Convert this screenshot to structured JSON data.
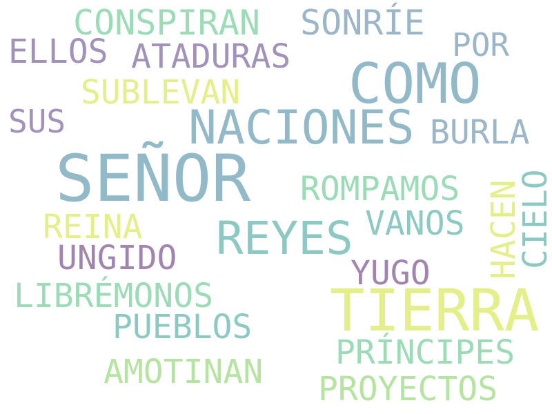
{
  "words": [
    {
      "id": "senor",
      "text": "SEÑOR",
      "color": "#91b9c7"
    },
    {
      "id": "como",
      "text": "COMO",
      "color": "#91b9c7"
    },
    {
      "id": "naciones",
      "text": "NACIONES",
      "color": "#91b9c7"
    },
    {
      "id": "tierra",
      "text": "TIERRA",
      "color": "#e4ef8a"
    },
    {
      "id": "reyes",
      "text": "REYES",
      "color": "#8cc9c3"
    },
    {
      "id": "conspiran",
      "text": "CONSPIRAN",
      "color": "#9bdcb7"
    },
    {
      "id": "sonrie",
      "text": "SONRÍE",
      "color": "#9bb5c9"
    },
    {
      "id": "ellos",
      "text": "ELLOS",
      "color": "#a291b9"
    },
    {
      "id": "ataduras",
      "text": "ATADURAS",
      "color": "#a291b9"
    },
    {
      "id": "por",
      "text": "POR",
      "color": "#9bb5c9"
    },
    {
      "id": "sublevan",
      "text": "SUBLEVAN",
      "color": "#e4ef8a"
    },
    {
      "id": "sus",
      "text": "SUS",
      "color": "#a291b9"
    },
    {
      "id": "burla",
      "text": "BURLA",
      "color": "#9bb5c9"
    },
    {
      "id": "rompamos",
      "text": "ROMPAMOS",
      "color": "#9bdcb7"
    },
    {
      "id": "hacen",
      "text": "HACEN",
      "color": "#e4ef8a"
    },
    {
      "id": "cielo",
      "text": "CIELO",
      "color": "#8cc9c3"
    },
    {
      "id": "reina",
      "text": "REINA",
      "color": "#e4ef8a"
    },
    {
      "id": "vanos",
      "text": "VANOS",
      "color": "#8cc9c3"
    },
    {
      "id": "ungido",
      "text": "UNGIDO",
      "color": "#a285af"
    },
    {
      "id": "yugo",
      "text": "YUGO",
      "color": "#a285af"
    },
    {
      "id": "libremonos",
      "text": "LIBRÉMONOS",
      "color": "#9bdcb7"
    },
    {
      "id": "pueblos",
      "text": "PUEBLOS",
      "color": "#8cc9c3"
    },
    {
      "id": "principes",
      "text": "PRÍNCIPES",
      "color": "#9bdcb7"
    },
    {
      "id": "amotinan",
      "text": "AMOTINAN",
      "color": "#b5e4a0"
    },
    {
      "id": "proyectos",
      "text": "PROYECTOS",
      "color": "#b5e4a0"
    }
  ]
}
